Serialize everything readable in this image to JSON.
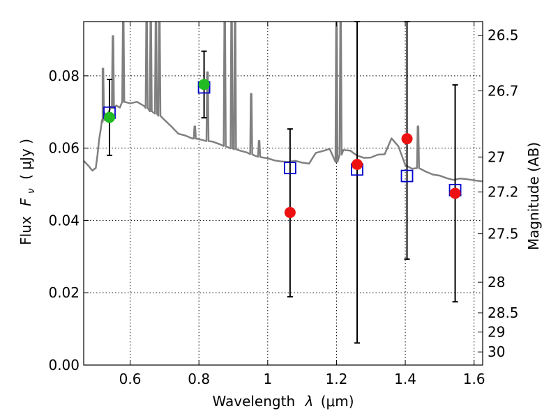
{
  "chart_data": {
    "type": "scatter",
    "xlabel_prefix": "Wavelength",
    "xlabel_symbol": "λ",
    "xlabel_unit": "(μm)",
    "ylabel_prefix": "Flux",
    "ylabel_symbol": "F",
    "ylabel_sub": "ν",
    "ylabel_unit": "( μJy )",
    "y2label": "Magnitude (AB)",
    "xlim": [
      0.465,
      1.625
    ],
    "ylim": [
      0.0,
      0.095
    ],
    "grid": true,
    "xticks": [
      {
        "v": 0.6,
        "label": "0.6"
      },
      {
        "v": 0.8,
        "label": "0.8"
      },
      {
        "v": 1.0,
        "label": "1"
      },
      {
        "v": 1.2,
        "label": "1.2"
      },
      {
        "v": 1.4,
        "label": "1.4"
      },
      {
        "v": 1.6,
        "label": "1.6"
      }
    ],
    "yticks": [
      {
        "v": 0.0,
        "label": "0.00"
      },
      {
        "v": 0.02,
        "label": "0.02"
      },
      {
        "v": 0.04,
        "label": "0.04"
      },
      {
        "v": 0.06,
        "label": "0.06"
      },
      {
        "v": 0.08,
        "label": "0.08"
      }
    ],
    "mag_ticks": [
      {
        "v": 26.5,
        "label": "26.5"
      },
      {
        "v": 26.7,
        "label": "26.7"
      },
      {
        "v": 27.0,
        "label": "27"
      },
      {
        "v": 27.2,
        "label": "27.2"
      },
      {
        "v": 27.5,
        "label": "27.5"
      },
      {
        "v": 28.0,
        "label": "28"
      },
      {
        "v": 28.5,
        "label": "28.5"
      },
      {
        "v": 29.0,
        "label": "29"
      },
      {
        "v": 30.0,
        "label": "30"
      }
    ],
    "colors": {
      "model": "#808080",
      "model_photometry": "#0000cc",
      "detected": "#22bb22",
      "measured": "#ee1111",
      "errorbar": "#000000"
    },
    "series": [
      {
        "name": "model_photometry",
        "marker": "square",
        "x": [
          0.54,
          0.815,
          1.065,
          1.26,
          1.405,
          1.545
        ],
        "y": [
          0.0698,
          0.0768,
          0.0545,
          0.0541,
          0.0523,
          0.0484
        ]
      },
      {
        "name": "observed_green",
        "marker": "circle",
        "x": [
          0.54,
          0.815
        ],
        "y": [
          0.0685,
          0.0776
        ]
      },
      {
        "name": "observed_red",
        "marker": "circle",
        "x": [
          1.065,
          1.26,
          1.405,
          1.545
        ],
        "y": [
          0.0422,
          0.0555,
          0.0626,
          0.0475
        ]
      }
    ],
    "errorbars": [
      {
        "x": 0.54,
        "low": 0.058,
        "high": 0.079
      },
      {
        "x": 0.815,
        "low": 0.0684,
        "high": 0.0868
      },
      {
        "x": 1.065,
        "low": 0.0189,
        "high": 0.0653
      },
      {
        "x": 1.26,
        "low": 0.0061,
        "high": 0.095
      },
      {
        "x": 1.405,
        "low": 0.0293,
        "high": 0.095
      },
      {
        "x": 1.545,
        "low": 0.0175,
        "high": 0.0775
      }
    ],
    "model_spectrum": {
      "x": [
        0.465,
        0.48,
        0.49,
        0.5,
        0.505,
        0.51,
        0.515,
        0.52,
        0.525,
        0.53,
        0.535,
        0.54,
        0.545,
        0.55,
        0.56,
        0.57,
        0.58,
        0.6,
        0.62,
        0.64,
        0.66,
        0.68,
        0.7,
        0.72,
        0.74,
        0.76,
        0.78,
        0.8,
        0.82,
        0.84,
        0.86,
        0.88,
        0.9,
        0.92,
        0.94,
        0.96,
        0.98,
        1.0,
        1.02,
        1.04,
        1.06,
        1.08,
        1.1,
        1.12,
        1.14,
        1.16,
        1.18,
        1.2,
        1.22,
        1.24,
        1.26,
        1.28,
        1.3,
        1.32,
        1.34,
        1.36,
        1.38,
        1.4,
        1.42,
        1.44,
        1.46,
        1.48,
        1.5,
        1.52,
        1.54,
        1.56,
        1.58,
        1.6,
        1.625
      ],
      "y": [
        0.0565,
        0.055,
        0.0538,
        0.0545,
        0.058,
        0.0625,
        0.0655,
        0.0672,
        0.07,
        0.0685,
        0.0695,
        0.0705,
        0.0715,
        0.0711,
        0.0718,
        0.0712,
        0.0728,
        0.0724,
        0.0728,
        0.0717,
        0.0702,
        0.0693,
        0.0678,
        0.066,
        0.064,
        0.0635,
        0.0627,
        0.0625,
        0.062,
        0.0618,
        0.0611,
        0.0604,
        0.0598,
        0.0593,
        0.0588,
        0.058,
        0.0575,
        0.0572,
        0.0566,
        0.0563,
        0.0562,
        0.0565,
        0.056,
        0.0557,
        0.0587,
        0.0592,
        0.0598,
        0.0562,
        0.0595,
        0.0593,
        0.0579,
        0.0573,
        0.0574,
        0.0582,
        0.0583,
        0.0627,
        0.0605,
        0.0553,
        0.0543,
        0.0545,
        0.0535,
        0.0527,
        0.0524,
        0.0517,
        0.0512,
        0.0516,
        0.0514,
        0.0511,
        0.0508
      ]
    },
    "emission_lines": [
      {
        "x": 0.521,
        "peak": 0.082
      },
      {
        "x": 0.55,
        "peak": 0.091
      },
      {
        "x": 0.58,
        "peak": 0.095
      },
      {
        "x": 0.648,
        "peak": 0.095
      },
      {
        "x": 0.66,
        "peak": 0.095
      },
      {
        "x": 0.675,
        "peak": 0.095
      },
      {
        "x": 0.685,
        "peak": 0.095
      },
      {
        "x": 0.788,
        "peak": 0.066
      },
      {
        "x": 0.825,
        "peak": 0.081
      },
      {
        "x": 0.875,
        "peak": 0.095
      },
      {
        "x": 0.895,
        "peak": 0.095
      },
      {
        "x": 0.905,
        "peak": 0.095
      },
      {
        "x": 0.952,
        "peak": 0.075
      },
      {
        "x": 0.975,
        "peak": 0.062
      },
      {
        "x": 1.2,
        "peak": 0.095
      },
      {
        "x": 1.212,
        "peak": 0.095
      },
      {
        "x": 1.437,
        "peak": 0.066
      }
    ]
  }
}
